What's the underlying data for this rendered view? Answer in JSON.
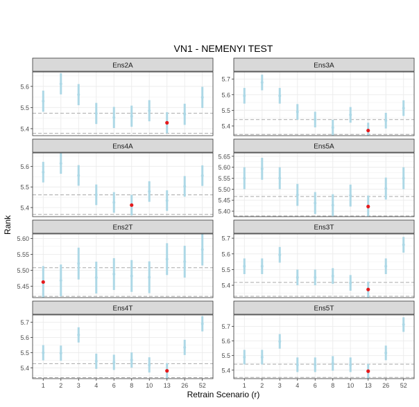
{
  "chart_data": {
    "type": "scatter",
    "title": "VN1 - NEMENYI TEST",
    "xlabel": "Retrain Scenario (r)",
    "ylabel": "Rank",
    "categories": [
      "1",
      "2",
      "3",
      "4",
      "6",
      "8",
      "10",
      "13",
      "26",
      "52"
    ],
    "colors": {
      "interval": "#add8e6",
      "point": "#e41a1c",
      "reference_line": "#a9a9a9",
      "strip": "#d9d9d9",
      "grid": "#ebebeb"
    },
    "grid": true,
    "panels": [
      {
        "name": "Ens2A",
        "ylim": [
          5.367,
          5.668
        ],
        "yticks": [
          5.4,
          5.5,
          5.6
        ],
        "values": [
          5.53,
          5.612,
          5.561,
          5.472,
          5.453,
          5.459,
          5.485,
          5.428,
          5.468,
          5.548
        ],
        "half_interval": 0.05,
        "best_index": 7,
        "ref_lines": [
          5.473,
          5.378
        ]
      },
      {
        "name": "Ens3A",
        "ylim": [
          5.338,
          5.745
        ],
        "yticks": [
          5.4,
          5.5,
          5.6,
          5.7
        ],
        "values": [
          5.593,
          5.678,
          5.593,
          5.49,
          5.441,
          5.39,
          5.471,
          5.371,
          5.434,
          5.514
        ],
        "half_interval": 0.05,
        "best_index": 7,
        "ref_lines": [
          5.441,
          5.346
        ]
      },
      {
        "name": "Ens4A",
        "ylim": [
          5.356,
          5.665
        ],
        "yticks": [
          5.4,
          5.5,
          5.6
        ],
        "values": [
          5.572,
          5.614,
          5.556,
          5.462,
          5.425,
          5.412,
          5.478,
          5.434,
          5.503,
          5.555
        ],
        "half_interval": 0.05,
        "best_index": 5,
        "ref_lines": [
          5.462,
          5.367
        ]
      },
      {
        "name": "Ens5A",
        "ylim": [
          5.375,
          5.665
        ],
        "yticks": [
          5.4,
          5.45,
          5.5,
          5.55,
          5.6,
          5.65
        ],
        "values": [
          5.55,
          5.593,
          5.55,
          5.474,
          5.437,
          5.427,
          5.471,
          5.421,
          5.503,
          5.55
        ],
        "half_interval": 0.05,
        "best_index": 7,
        "ref_lines": [
          5.467,
          5.378
        ]
      },
      {
        "name": "Ens2T",
        "ylim": [
          5.414,
          5.614
        ],
        "yticks": [
          5.45,
          5.5,
          5.55,
          5.6
        ],
        "values": [
          5.463,
          5.468,
          5.521,
          5.477,
          5.488,
          5.482,
          5.478,
          5.535,
          5.527,
          5.565
        ],
        "half_interval": 0.05,
        "best_index": 0,
        "ref_lines": [
          5.508,
          5.418
        ]
      },
      {
        "name": "Ens3T",
        "ylim": [
          5.321,
          5.727
        ],
        "yticks": [
          5.4,
          5.5,
          5.6,
          5.7
        ],
        "values": [
          5.521,
          5.521,
          5.594,
          5.45,
          5.45,
          5.459,
          5.415,
          5.373,
          5.521,
          5.658
        ],
        "half_interval": 0.05,
        "best_index": 7,
        "ref_lines": [
          5.418,
          5.33
        ]
      },
      {
        "name": "Ens4T",
        "ylim": [
          5.33,
          5.748
        ],
        "yticks": [
          5.4,
          5.5,
          5.6,
          5.7
        ],
        "values": [
          5.5,
          5.497,
          5.617,
          5.444,
          5.437,
          5.452,
          5.42,
          5.381,
          5.535,
          5.69
        ],
        "half_interval": 0.05,
        "best_index": 7,
        "ref_lines": [
          5.428,
          5.337
        ]
      },
      {
        "name": "Ens5T",
        "ylim": [
          5.342,
          5.778
        ],
        "yticks": [
          5.4,
          5.5,
          5.6,
          5.7
        ],
        "values": [
          5.489,
          5.489,
          5.597,
          5.437,
          5.437,
          5.446,
          5.437,
          5.393,
          5.518,
          5.712
        ],
        "half_interval": 0.05,
        "best_index": 7,
        "ref_lines": [
          5.441,
          5.35
        ]
      }
    ]
  }
}
